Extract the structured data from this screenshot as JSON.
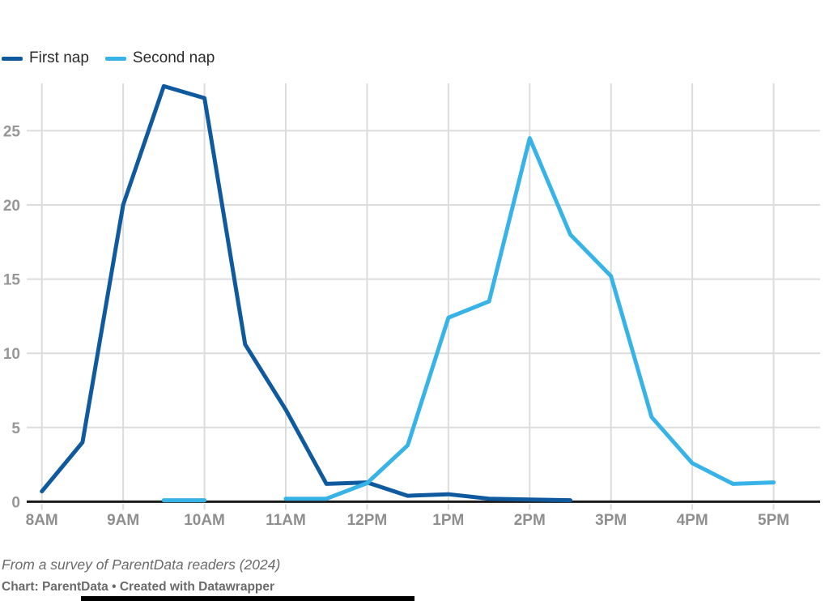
{
  "legend": {
    "items": [
      {
        "label": "First nap"
      },
      {
        "label": "Second nap"
      }
    ]
  },
  "footer": {
    "source_note": "From a survey of ParentData readers (2024)",
    "attribution": "Chart: ParentData • Created with Datawrapper"
  },
  "colors": {
    "first_nap": "#0f5a9e",
    "second_nap": "#38b3e8",
    "gridline": "#dcdcdc",
    "axis": "#1a1a1a",
    "tick_label": "#949494"
  },
  "chart_data": {
    "type": "line",
    "title": "",
    "xlabel": "",
    "ylabel": "",
    "grid": true,
    "legend_position": "top-left",
    "ylim": [
      0,
      28.5
    ],
    "y_ticks": [
      0,
      5,
      10,
      15,
      20,
      25
    ],
    "x_ticks": [
      "8AM",
      "9AM",
      "10AM",
      "11AM",
      "12PM",
      "1PM",
      "2PM",
      "3PM",
      "4PM",
      "5PM"
    ],
    "x_tick_hours": [
      8,
      9,
      10,
      11,
      12,
      13,
      14,
      15,
      16,
      17
    ],
    "x_unit": "hour of day (24h values)",
    "series": [
      {
        "name": "First nap",
        "color": "#0f5a9e",
        "segments": [
          [
            [
              8,
              0.7
            ],
            [
              8.5,
              4
            ],
            [
              9,
              20
            ],
            [
              9.5,
              28
            ],
            [
              10,
              27.2
            ],
            [
              10.5,
              10.6
            ],
            [
              11,
              6.2
            ],
            [
              11.5,
              1.2
            ],
            [
              12,
              1.3
            ],
            [
              12.5,
              0.4
            ],
            [
              13,
              0.5
            ],
            [
              13.5,
              0.2
            ],
            [
              14,
              0.15
            ],
            [
              14.5,
              0.1
            ]
          ]
        ]
      },
      {
        "name": "Second nap",
        "color": "#38b3e8",
        "segments": [
          [
            [
              9.5,
              0.1
            ],
            [
              10,
              0.1
            ]
          ],
          [
            [
              11,
              0.2
            ],
            [
              11.5,
              0.2
            ],
            [
              12,
              1.25
            ],
            [
              12.5,
              3.8
            ],
            [
              13,
              12.4
            ],
            [
              13.5,
              13.5
            ],
            [
              14,
              24.5
            ],
            [
              14.5,
              18
            ],
            [
              15,
              15.2
            ],
            [
              15.5,
              5.7
            ],
            [
              16,
              2.6
            ],
            [
              16.5,
              1.2
            ],
            [
              17,
              1.3
            ]
          ]
        ]
      }
    ]
  }
}
